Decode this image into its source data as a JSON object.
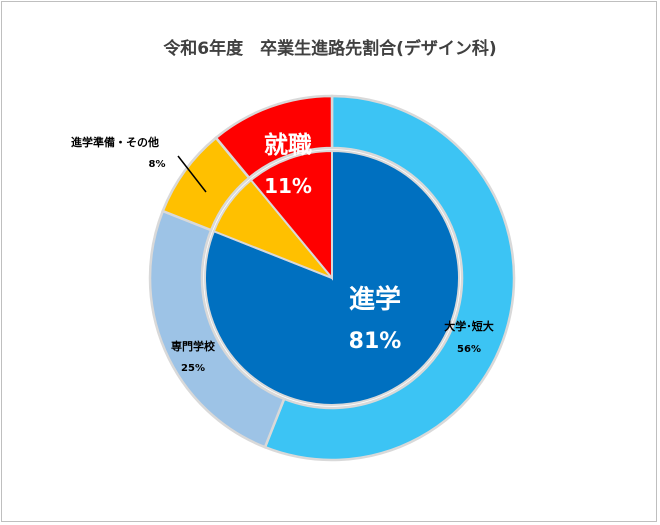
{
  "chart_data": {
    "type": "pie",
    "title": "令和6年度　卒業生進路先割合(デザイン科)",
    "inner": [
      {
        "label": "進学",
        "value": 81,
        "display": "81%",
        "color": "#0070C0"
      },
      {
        "label": "進学準備・その他",
        "value": 8,
        "display": "",
        "color": "#FFC000"
      },
      {
        "label": "就職",
        "value": 11,
        "display": "11%",
        "color": "#FF0000"
      }
    ],
    "outer": [
      {
        "label": "大学･短大",
        "value": 56,
        "display": "56%",
        "color": "#3CC4F4"
      },
      {
        "label": "専門学校",
        "value": 25,
        "display": "25%",
        "color": "#9DC3E6"
      },
      {
        "label": "進学準備・その他",
        "value": 8,
        "display": "8%",
        "color": "#FFC000"
      },
      {
        "label": "就職",
        "value": 11,
        "display": "11%",
        "color": "#FF0000"
      }
    ]
  }
}
